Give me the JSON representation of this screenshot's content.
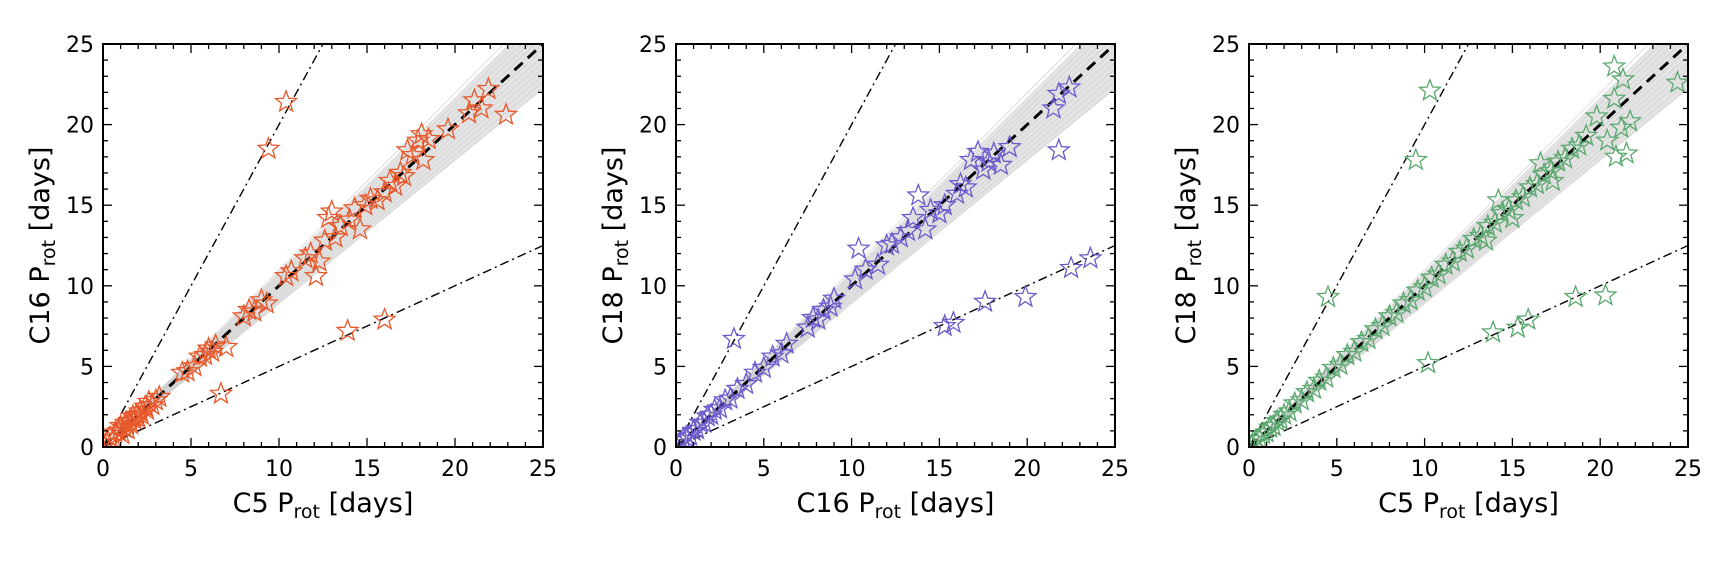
{
  "chart_data": [
    {
      "type": "scatter",
      "xlabel": {
        "main": "C5 P",
        "sub": "rot",
        "unit": " [days]"
      },
      "ylabel": {
        "main": "C16 P",
        "sub": "rot",
        "unit": " [days]"
      },
      "xlim": [
        0,
        25
      ],
      "ylim": [
        0,
        25
      ],
      "xticks": [
        0,
        5,
        10,
        15,
        20,
        25
      ],
      "yticks": [
        0,
        5,
        10,
        15,
        20,
        25
      ],
      "color": "#e8582a",
      "marker": "open-star",
      "reference_lines": [
        "y = x (dashed)",
        "y = 2x (dash-dot)",
        "y = x/2 (dash-dot)"
      ],
      "uncertainty_band": "grey shaded fan around y = x",
      "series": [
        {
          "points": [
            [
              0.2,
              0.3
            ],
            [
              0.4,
              0.6
            ],
            [
              0.6,
              0.5
            ],
            [
              0.7,
              0.9
            ],
            [
              0.9,
              1.0
            ],
            [
              1.0,
              1.3
            ],
            [
              1.1,
              0.8
            ],
            [
              1.2,
              1.2
            ],
            [
              1.3,
              1.5
            ],
            [
              1.4,
              1.1
            ],
            [
              1.5,
              1.6
            ],
            [
              1.6,
              1.4
            ],
            [
              1.7,
              1.9
            ],
            [
              1.8,
              1.7
            ],
            [
              1.9,
              2.0
            ],
            [
              2.0,
              1.8
            ],
            [
              2.1,
              2.2
            ],
            [
              2.2,
              2.0
            ],
            [
              2.4,
              2.5
            ],
            [
              2.5,
              2.3
            ],
            [
              2.6,
              2.8
            ],
            [
              2.8,
              2.6
            ],
            [
              3.0,
              2.9
            ],
            [
              3.2,
              3.1
            ],
            [
              4.5,
              4.6
            ],
            [
              4.8,
              4.7
            ],
            [
              5.5,
              5.6
            ],
            [
              5.8,
              5.7
            ],
            [
              6.0,
              6.1
            ],
            [
              6.2,
              5.9
            ],
            [
              6.4,
              6.3
            ],
            [
              5.2,
              5.0
            ],
            [
              6.7,
              3.3
            ],
            [
              7.0,
              6.2
            ],
            [
              8.0,
              8.1
            ],
            [
              8.3,
              8.5
            ],
            [
              8.6,
              8.4
            ],
            [
              9.0,
              9.1
            ],
            [
              9.3,
              8.9
            ],
            [
              10.4,
              10.6
            ],
            [
              10.7,
              10.9
            ],
            [
              11.5,
              11.7
            ],
            [
              11.8,
              12.0
            ],
            [
              12.1,
              10.6
            ],
            [
              12.3,
              11.5
            ],
            [
              12.6,
              12.8
            ],
            [
              12.8,
              14.2
            ],
            [
              13.0,
              14.6
            ],
            [
              13.2,
              13.0
            ],
            [
              13.5,
              13.7
            ],
            [
              14.0,
              14.1
            ],
            [
              14.3,
              14.8
            ],
            [
              14.6,
              13.5
            ],
            [
              14.9,
              15.0
            ],
            [
              15.2,
              15.4
            ],
            [
              15.6,
              15.3
            ],
            [
              16.0,
              15.8
            ],
            [
              16.3,
              16.5
            ],
            [
              16.6,
              16.2
            ],
            [
              16.9,
              17.0
            ],
            [
              17.1,
              16.8
            ],
            [
              17.3,
              18.4
            ],
            [
              17.6,
              18.1
            ],
            [
              17.9,
              19.0
            ],
            [
              18.2,
              17.8
            ],
            [
              18.5,
              19.1
            ],
            [
              18.1,
              19.4
            ],
            [
              19.6,
              19.7
            ],
            [
              20.8,
              20.7
            ],
            [
              21.1,
              21.5
            ],
            [
              21.5,
              21.0
            ],
            [
              21.9,
              22.2
            ],
            [
              22.9,
              20.6
            ],
            [
              13.9,
              7.2
            ],
            [
              16.0,
              7.9
            ],
            [
              9.4,
              18.5
            ],
            [
              10.4,
              21.4
            ]
          ]
        }
      ]
    },
    {
      "type": "scatter",
      "xlabel": {
        "main": "C16 P",
        "sub": "rot",
        "unit": " [days]"
      },
      "ylabel": {
        "main": "C18 P",
        "sub": "rot",
        "unit": " [days]"
      },
      "xlim": [
        0,
        25
      ],
      "ylim": [
        0,
        25
      ],
      "xticks": [
        0,
        5,
        10,
        15,
        20,
        25
      ],
      "yticks": [
        0,
        5,
        10,
        15,
        20,
        25
      ],
      "color": "#6a5acd",
      "marker": "open-star",
      "reference_lines": [
        "y = x (dashed)",
        "y = 2x (dash-dot)",
        "y = x/2 (dash-dot)"
      ],
      "uncertainty_band": "grey shaded fan around y = x",
      "series": [
        {
          "points": [
            [
              0.2,
              0.2
            ],
            [
              0.4,
              0.5
            ],
            [
              0.6,
              0.6
            ],
            [
              0.8,
              0.7
            ],
            [
              1.0,
              1.0
            ],
            [
              1.2,
              1.1
            ],
            [
              1.4,
              1.5
            ],
            [
              1.6,
              1.5
            ],
            [
              1.8,
              1.9
            ],
            [
              2.0,
              2.0
            ],
            [
              2.2,
              2.3
            ],
            [
              2.5,
              2.4
            ],
            [
              2.8,
              2.9
            ],
            [
              3.1,
              3.0
            ],
            [
              3.5,
              3.6
            ],
            [
              4.0,
              3.9
            ],
            [
              4.5,
              4.6
            ],
            [
              5.0,
              4.9
            ],
            [
              5.5,
              5.6
            ],
            [
              6.0,
              5.8
            ],
            [
              6.3,
              6.4
            ],
            [
              7.5,
              7.4
            ],
            [
              7.8,
              8.0
            ],
            [
              8.1,
              7.9
            ],
            [
              8.4,
              8.5
            ],
            [
              8.8,
              8.7
            ],
            [
              9.0,
              9.2
            ],
            [
              10.2,
              10.4
            ],
            [
              10.4,
              12.3
            ],
            [
              10.8,
              11.0
            ],
            [
              11.5,
              11.3
            ],
            [
              12.0,
              12.5
            ],
            [
              12.3,
              12.6
            ],
            [
              12.8,
              13.0
            ],
            [
              13.2,
              13.4
            ],
            [
              13.5,
              14.2
            ],
            [
              13.8,
              15.6
            ],
            [
              14.2,
              13.5
            ],
            [
              14.5,
              14.7
            ],
            [
              15.0,
              14.5
            ],
            [
              15.3,
              15.0
            ],
            [
              16.0,
              15.7
            ],
            [
              16.2,
              16.3
            ],
            [
              16.5,
              16.1
            ],
            [
              16.8,
              17.8
            ],
            [
              17.2,
              18.3
            ],
            [
              17.5,
              17.2
            ],
            [
              17.8,
              17.7
            ],
            [
              18.1,
              18.2
            ],
            [
              18.5,
              17.5
            ],
            [
              19.0,
              18.6
            ],
            [
              21.5,
              21.0
            ],
            [
              21.8,
              21.9
            ],
            [
              22.4,
              22.3
            ],
            [
              21.8,
              18.4
            ],
            [
              15.3,
              7.5
            ],
            [
              15.8,
              7.7
            ],
            [
              17.6,
              9.0
            ],
            [
              19.9,
              9.3
            ],
            [
              22.5,
              11.1
            ],
            [
              23.6,
              11.7
            ],
            [
              3.3,
              6.7
            ]
          ]
        }
      ]
    },
    {
      "type": "scatter",
      "xlabel": {
        "main": "C5 P",
        "sub": "rot",
        "unit": " [days]"
      },
      "ylabel": {
        "main": "C18 P",
        "sub": "rot",
        "unit": " [days]"
      },
      "xlim": [
        0,
        25
      ],
      "ylim": [
        0,
        25
      ],
      "xticks": [
        0,
        5,
        10,
        15,
        20,
        25
      ],
      "yticks": [
        0,
        5,
        10,
        15,
        20,
        25
      ],
      "color": "#5aa86e",
      "marker": "open-star",
      "reference_lines": [
        "y = x (dashed)",
        "y = 2x (dash-dot)",
        "y = x/2 (dash-dot)"
      ],
      "uncertainty_band": "grey shaded fan around y = x",
      "series": [
        {
          "points": [
            [
              0.2,
              0.2
            ],
            [
              0.4,
              0.4
            ],
            [
              0.6,
              0.5
            ],
            [
              0.8,
              0.8
            ],
            [
              1.0,
              0.9
            ],
            [
              1.2,
              1.2
            ],
            [
              1.4,
              1.3
            ],
            [
              1.6,
              1.6
            ],
            [
              1.8,
              1.7
            ],
            [
              2.0,
              2.0
            ],
            [
              2.3,
              2.2
            ],
            [
              2.6,
              2.7
            ],
            [
              3.0,
              2.9
            ],
            [
              3.3,
              3.4
            ],
            [
              3.7,
              3.6
            ],
            [
              4.0,
              4.1
            ],
            [
              4.4,
              4.3
            ],
            [
              4.8,
              4.9
            ],
            [
              5.2,
              5.1
            ],
            [
              5.6,
              5.7
            ],
            [
              6.0,
              5.9
            ],
            [
              6.4,
              6.5
            ],
            [
              6.8,
              6.7
            ],
            [
              7.2,
              7.3
            ],
            [
              7.6,
              7.5
            ],
            [
              8.0,
              8.1
            ],
            [
              8.4,
              8.3
            ],
            [
              8.8,
              8.9
            ],
            [
              9.2,
              9.1
            ],
            [
              9.6,
              9.7
            ],
            [
              10.0,
              9.9
            ],
            [
              10.4,
              10.5
            ],
            [
              10.8,
              10.7
            ],
            [
              11.2,
              11.3
            ],
            [
              11.6,
              11.5
            ],
            [
              12.0,
              12.1
            ],
            [
              12.4,
              12.3
            ],
            [
              12.8,
              12.9
            ],
            [
              13.2,
              13.1
            ],
            [
              13.6,
              13.7
            ],
            [
              14.0,
              13.9
            ],
            [
              14.4,
              14.5
            ],
            [
              14.8,
              14.7
            ],
            [
              15.2,
              15.3
            ],
            [
              15.6,
              15.5
            ],
            [
              16.0,
              16.1
            ],
            [
              16.4,
              16.3
            ],
            [
              16.8,
              16.9
            ],
            [
              17.2,
              17.1
            ],
            [
              17.6,
              17.7
            ],
            [
              18.0,
              17.9
            ],
            [
              18.4,
              18.5
            ],
            [
              18.8,
              18.7
            ],
            [
              19.2,
              19.3
            ],
            [
              13.5,
              12.8
            ],
            [
              14.2,
              15.3
            ],
            [
              15.0,
              14.2
            ],
            [
              16.6,
              17.6
            ],
            [
              17.3,
              16.5
            ],
            [
              19.8,
              20.5
            ],
            [
              20.4,
              19.0
            ],
            [
              20.9,
              18.0
            ],
            [
              21.2,
              19.8
            ],
            [
              21.5,
              18.2
            ],
            [
              20.8,
              21.6
            ],
            [
              21.3,
              22.8
            ],
            [
              20.8,
              23.6
            ],
            [
              24.4,
              22.6
            ],
            [
              21.7,
              20.2
            ],
            [
              10.3,
              22.1
            ],
            [
              9.5,
              17.8
            ],
            [
              4.5,
              9.3
            ],
            [
              10.2,
              5.2
            ],
            [
              13.9,
              7.1
            ],
            [
              15.3,
              7.4
            ],
            [
              15.9,
              7.9
            ],
            [
              18.6,
              9.3
            ],
            [
              20.3,
              9.4
            ]
          ]
        }
      ]
    }
  ]
}
